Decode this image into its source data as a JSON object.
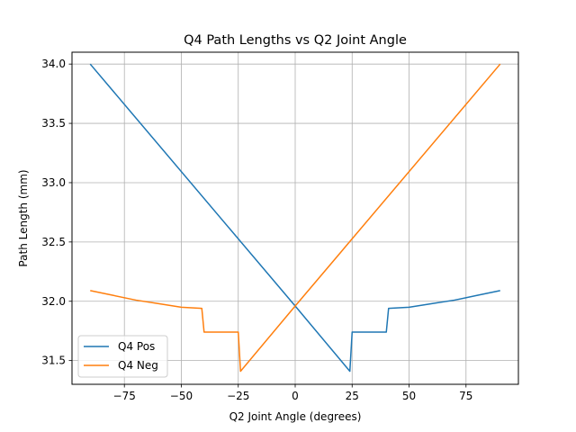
{
  "chart_data": {
    "type": "line",
    "title": "Q4 Path Lengths vs Q2 Joint Angle",
    "xlabel": "Q2 Joint Angle (degrees)",
    "ylabel": "Path Length (mm)",
    "xlim": [
      -98,
      98
    ],
    "ylim": [
      31.3,
      34.1
    ],
    "xticks": [
      -75,
      -50,
      -25,
      0,
      25,
      50,
      75
    ],
    "xtick_labels": [
      "−75",
      "−50",
      "−25",
      "0",
      "25",
      "50",
      "75"
    ],
    "yticks": [
      31.5,
      32.0,
      32.5,
      33.0,
      33.5,
      34.0
    ],
    "ytick_labels": [
      "31.5",
      "32.0",
      "32.5",
      "33.0",
      "33.5",
      "34.0"
    ],
    "grid": true,
    "legend_position": "lower-left",
    "series": [
      {
        "name": "Q4 Pos",
        "color": "#1f77b4",
        "points": [
          [
            -90,
            34.0
          ],
          [
            0,
            31.96
          ],
          [
            24,
            31.41
          ],
          [
            25,
            31.74
          ],
          [
            40,
            31.74
          ],
          [
            41,
            31.94
          ],
          [
            50,
            31.95
          ],
          [
            60,
            31.98
          ],
          [
            70,
            32.01
          ],
          [
            80,
            32.05
          ],
          [
            90,
            32.09
          ]
        ]
      },
      {
        "name": "Q4 Neg",
        "color": "#ff7f0e",
        "points": [
          [
            -90,
            32.09
          ],
          [
            -80,
            32.05
          ],
          [
            -70,
            32.01
          ],
          [
            -60,
            31.98
          ],
          [
            -50,
            31.95
          ],
          [
            -41,
            31.94
          ],
          [
            -40,
            31.74
          ],
          [
            -25,
            31.74
          ],
          [
            -24,
            31.41
          ],
          [
            0,
            31.96
          ],
          [
            90,
            34.0
          ]
        ]
      }
    ]
  }
}
